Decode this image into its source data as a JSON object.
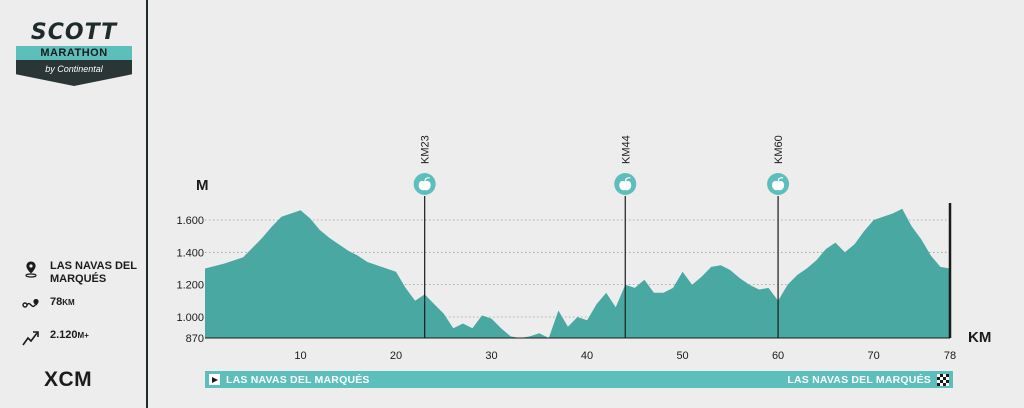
{
  "logo": {
    "brand": "SCOTT",
    "event": "MARATHON",
    "sponsor": "by Continental"
  },
  "stats": {
    "location": "LAS NAVAS DEL MARQUÉS",
    "distance_value": "78",
    "distance_unit": "KM",
    "elevation_value": "2.120",
    "elevation_unit": "M+"
  },
  "discipline": "XCM",
  "colors": {
    "profile": "#4aa8a3",
    "accent": "#5cbfbc",
    "dark": "#1f2b2b",
    "background": "#ededed"
  },
  "route": {
    "start": "LAS NAVAS DEL MARQUÉS",
    "finish": "LAS NAVAS DEL MARQUÉS"
  },
  "chart_data": {
    "type": "area",
    "ylabel": "M",
    "xlabel": "KM",
    "xlim": [
      0,
      78
    ],
    "ylim": [
      870,
      1700
    ],
    "x_ticks": [
      10,
      20,
      30,
      40,
      50,
      60,
      70,
      78
    ],
    "y_ticks": [
      870,
      1000,
      1200,
      1400,
      1600
    ],
    "x_tick_labels": [
      "10",
      "20",
      "30",
      "40",
      "50",
      "60",
      "70",
      "78"
    ],
    "y_tick_labels": [
      "870",
      "1.000",
      "1.200",
      "1.400",
      "1.600"
    ],
    "grid": "horizontal dotted",
    "series": [
      {
        "x": [
          0,
          2,
          4,
          5,
          6,
          7,
          8,
          9,
          10,
          11,
          12,
          13,
          14,
          15,
          16,
          17,
          18,
          19,
          20,
          21,
          22,
          23,
          24,
          25,
          26,
          27,
          28,
          29,
          30,
          31,
          32,
          33,
          34,
          35,
          36,
          37,
          38,
          39,
          40,
          41,
          42,
          43,
          44,
          45,
          46,
          47,
          48,
          49,
          50,
          51,
          52,
          53,
          54,
          55,
          56,
          57,
          58,
          59,
          60,
          61,
          62,
          63,
          64,
          65,
          66,
          67,
          68,
          69,
          70,
          71,
          72,
          73,
          74,
          75,
          76,
          77,
          78
        ],
        "y": [
          1300,
          1330,
          1370,
          1430,
          1490,
          1560,
          1620,
          1640,
          1660,
          1610,
          1540,
          1490,
          1450,
          1410,
          1380,
          1340,
          1320,
          1300,
          1280,
          1180,
          1100,
          1140,
          1080,
          1020,
          930,
          960,
          930,
          1010,
          990,
          930,
          880,
          870,
          880,
          900,
          870,
          1040,
          940,
          1000,
          980,
          1080,
          1150,
          1060,
          1200,
          1180,
          1230,
          1150,
          1150,
          1180,
          1280,
          1200,
          1250,
          1310,
          1320,
          1290,
          1240,
          1200,
          1170,
          1180,
          1100,
          1200,
          1260,
          1300,
          1350,
          1420,
          1460,
          1400,
          1450,
          1530,
          1600,
          1620,
          1640,
          1670,
          1560,
          1480,
          1380,
          1310,
          1300
        ]
      }
    ],
    "checkpoints": [
      {
        "km": 23,
        "label": "KM23",
        "icon": "apple-icon"
      },
      {
        "km": 44,
        "label": "KM44",
        "icon": "apple-icon"
      },
      {
        "km": 60,
        "label": "KM60",
        "icon": "apple-icon"
      }
    ]
  }
}
